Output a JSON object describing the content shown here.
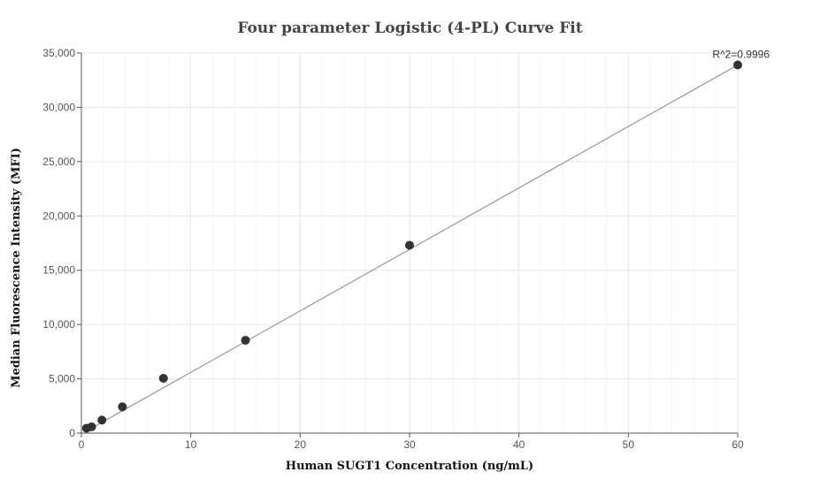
{
  "chart_data": {
    "type": "scatter",
    "title": "Four parameter Logistic (4-PL) Curve Fit",
    "xlabel": "Human SUGT1 Concentration (ng/mL)",
    "ylabel": "Median Fluorescence Intensity (MFI)",
    "xlim": [
      0,
      60
    ],
    "ylim": [
      0,
      35000
    ],
    "x_ticks": [
      0,
      10,
      20,
      30,
      40,
      50,
      60
    ],
    "y_ticks": [
      0,
      5000,
      10000,
      15000,
      20000,
      25000,
      30000,
      35000
    ],
    "x_tick_labels": [
      "0",
      "10",
      "20",
      "30",
      "40",
      "50",
      "60"
    ],
    "y_tick_labels": [
      "0",
      "5,000",
      "10,000",
      "15,000",
      "20,000",
      "25,000",
      "30,000",
      "35,000"
    ],
    "grid": true,
    "points": [
      {
        "x": 0.47,
        "y": 450
      },
      {
        "x": 0.94,
        "y": 580
      },
      {
        "x": 1.88,
        "y": 1200
      },
      {
        "x": 3.75,
        "y": 2420
      },
      {
        "x": 7.5,
        "y": 5050
      },
      {
        "x": 15,
        "y": 8550
      },
      {
        "x": 30,
        "y": 17300
      },
      {
        "x": 60,
        "y": 33900
      }
    ],
    "fit_line": [
      {
        "x": 0.47,
        "y": 200
      },
      {
        "x": 60,
        "y": 33900
      }
    ],
    "annotation": {
      "text": "R^2=0.9996",
      "x": 60,
      "y": 33900
    },
    "colors": {
      "point": "#333333",
      "line": "#888888",
      "grid": "#e6e6e6",
      "axis": "#555555"
    }
  }
}
